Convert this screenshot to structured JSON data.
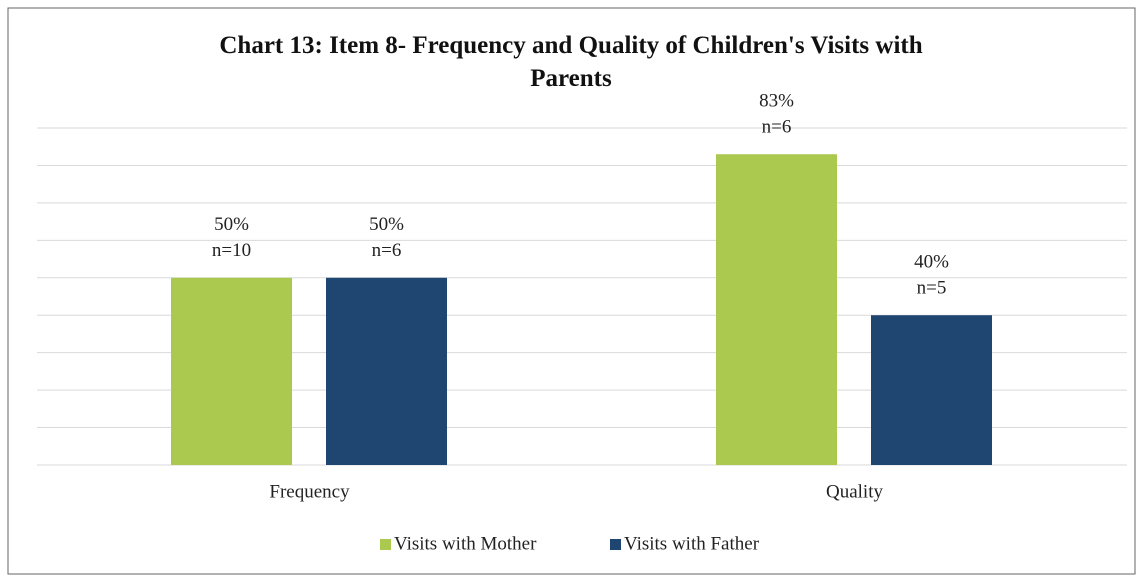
{
  "chart_data": {
    "type": "bar",
    "title": "Chart 13: Item 8- Frequency and Quality of Children's Visits with Parents",
    "categories": [
      "Frequency",
      "Quality"
    ],
    "series": [
      {
        "name": "Visits with Mother",
        "color": "#abc94e",
        "values": [
          50,
          83
        ],
        "value_labels": [
          "50%",
          "83%"
        ],
        "count_labels": [
          "n=10",
          "n=6"
        ]
      },
      {
        "name": "Visits with Father",
        "color": "#1f4670",
        "values": [
          50,
          40
        ],
        "value_labels": [
          "50%",
          "40%"
        ],
        "count_labels": [
          "n=6",
          "n=5"
        ]
      }
    ],
    "ylim": [
      0,
      90
    ],
    "yticks": [
      0,
      10,
      20,
      30,
      40,
      50,
      60,
      70,
      80,
      90
    ],
    "grid": true,
    "legend": "bottom"
  }
}
